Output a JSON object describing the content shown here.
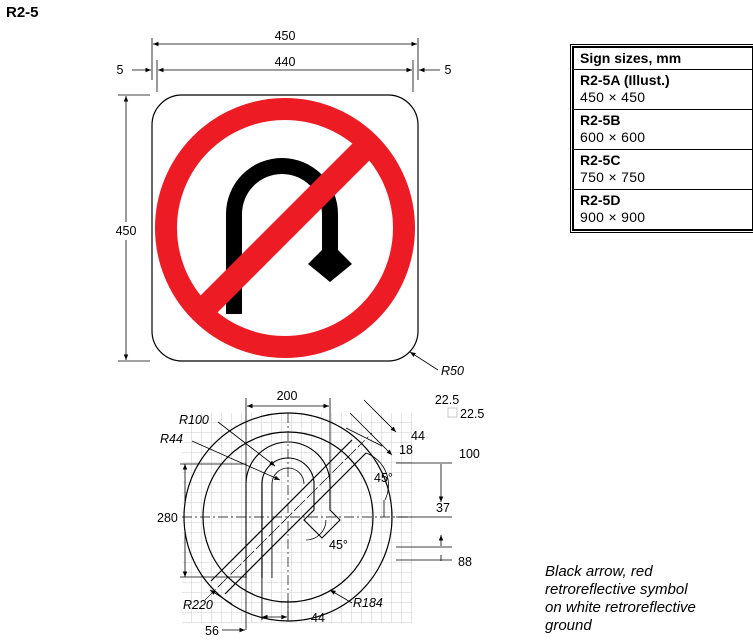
{
  "sign_code": "R2-5",
  "dimensions": {
    "overall_width": "450",
    "face_width": "440",
    "border_left": "5",
    "border_right": "5",
    "height": "450",
    "corner_radius": "R50"
  },
  "detail": {
    "width_200": "200",
    "grid_a": "22.5",
    "grid_b": "22.5",
    "r100": "R100",
    "r44": "R44",
    "d44_top": "44",
    "d18": "18",
    "d100": "100",
    "angle_top": "45°",
    "d37": "37",
    "height_280": "280",
    "angle_mid": "45°",
    "d88": "88",
    "r220": "R220",
    "r184": "R184",
    "d56": "56",
    "d44_bottom": "44"
  },
  "sizes_table": {
    "header": "Sign sizes, mm",
    "rows": [
      {
        "variant": "R2-5A (Illust.)",
        "size": "450 × 450"
      },
      {
        "variant": "R2-5B",
        "size": "600 × 600"
      },
      {
        "variant": "R2-5C",
        "size": "750 × 750"
      },
      {
        "variant": "R2-5D",
        "size": "900 × 900"
      }
    ]
  },
  "note": {
    "line1": "Black arrow, red",
    "line2": "retroreflective symbol",
    "line3": "on white retroreflective",
    "line4": "ground"
  },
  "colors": {
    "red": "#ed1c24",
    "black": "#000000",
    "white": "#ffffff",
    "grid": "#bfbfbf"
  }
}
